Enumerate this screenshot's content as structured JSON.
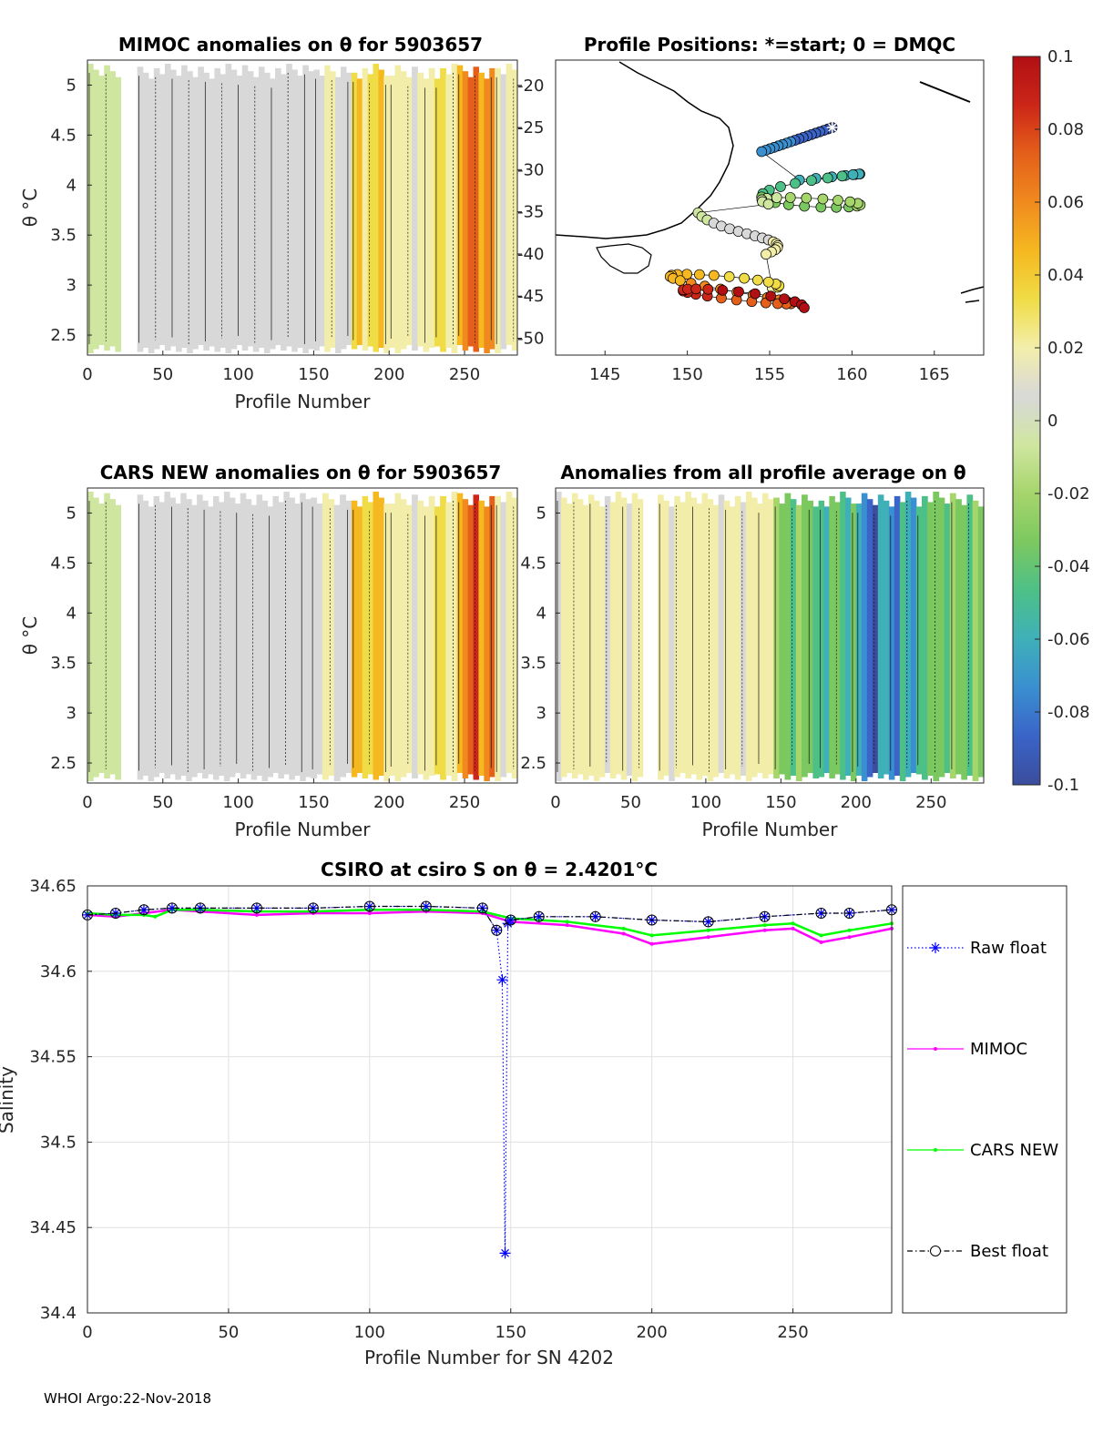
{
  "footer": "WHOI Argo:22-Nov-2018",
  "colorbar": {
    "ticks": [
      "0.1",
      "0.08",
      "0.06",
      "0.04",
      "0.02",
      "0",
      "-0.02",
      "-0.04",
      "-0.06",
      "-0.08",
      "-0.1"
    ],
    "range": [
      -0.1,
      0.1
    ],
    "colors": [
      "#3b4d9c",
      "#3a64c8",
      "#3a8fd0",
      "#3fb0b8",
      "#4dc088",
      "#7cc860",
      "#a6d56c",
      "#cfe6a0",
      "#d8d8d8",
      "#f2eeaa",
      "#f0dc46",
      "#f5b820",
      "#f08a1e",
      "#e45f1a",
      "#cc2618",
      "#b10f14"
    ]
  },
  "charts": {
    "mimoc_anom": {
      "type": "heatmap",
      "title": "MIMOC anomalies on θ  for 5903657",
      "xlabel": "Profile Number",
      "ylabel": "θ °C",
      "x_ticks": [
        "0",
        "50",
        "100",
        "150",
        "200",
        "250"
      ],
      "y_ticks": [
        "5",
        "4.5",
        "4",
        "3.5",
        "3",
        "2.5"
      ],
      "xlim": [
        0,
        285
      ],
      "ylim": [
        2.3,
        5.25
      ],
      "segments": [
        {
          "x": [
            0,
            22
          ],
          "anomaly": -0.01
        },
        {
          "x": [
            33,
            150
          ],
          "anomaly": 0.0
        },
        {
          "x": [
            150,
            175
          ],
          "anomaly": 0.015
        },
        {
          "x": [
            175,
            200
          ],
          "anomaly": 0.04
        },
        {
          "x": [
            200,
            230
          ],
          "anomaly": 0.02
        },
        {
          "x": [
            230,
            245
          ],
          "anomaly": 0.03
        },
        {
          "x": [
            245,
            270
          ],
          "anomaly": 0.065
        },
        {
          "x": [
            270,
            285
          ],
          "anomaly": 0.02
        }
      ]
    },
    "positions": {
      "type": "scatter",
      "title": "Profile Positions: *=start; 0 = DMQC",
      "x_ticks": [
        "145",
        "150",
        "155",
        "160",
        "165"
      ],
      "y_ticks": [
        "-20",
        "-25",
        "-30",
        "-35",
        "-40",
        "-45",
        "-50"
      ],
      "xlim": [
        142,
        168
      ],
      "ylim": [
        -52,
        -17
      ],
      "start": {
        "lon": 158.8,
        "lat": -25
      }
    },
    "cars_anom": {
      "type": "heatmap",
      "title": "CARS NEW anomalies on θ for 5903657",
      "xlabel": "Profile Number",
      "ylabel": "θ °C",
      "x_ticks": [
        "0",
        "50",
        "100",
        "150",
        "200",
        "250"
      ],
      "y_ticks": [
        "5",
        "4.5",
        "4",
        "3.5",
        "3",
        "2.5"
      ],
      "xlim": [
        0,
        285
      ],
      "ylim": [
        2.3,
        5.25
      ],
      "segments": [
        {
          "x": [
            0,
            22
          ],
          "anomaly": -0.01
        },
        {
          "x": [
            33,
            148
          ],
          "anomaly": 0.0
        },
        {
          "x": [
            148,
            175
          ],
          "anomaly": 0.015
        },
        {
          "x": [
            175,
            200
          ],
          "anomaly": 0.045
        },
        {
          "x": [
            200,
            230
          ],
          "anomaly": 0.02
        },
        {
          "x": [
            230,
            245
          ],
          "anomaly": 0.03
        },
        {
          "x": [
            245,
            270
          ],
          "anomaly": 0.07
        },
        {
          "x": [
            270,
            285
          ],
          "anomaly": 0.02
        }
      ]
    },
    "all_anom": {
      "type": "heatmap",
      "title": "Anomalies from all profile average on θ",
      "xlabel": "Profile Number",
      "x_ticks": [
        "0",
        "50",
        "100",
        "150",
        "200",
        "250"
      ],
      "y_ticks": [
        "5",
        "4.5",
        "4",
        "3.5",
        "3",
        "2.5"
      ],
      "xlim": [
        0,
        285
      ],
      "ylim": [
        2.3,
        5.25
      ],
      "segments": [
        {
          "x": [
            0,
            58
          ],
          "anomaly": 0.02
        },
        {
          "x": [
            68,
            145
          ],
          "anomaly": 0.02
        },
        {
          "x": [
            145,
            175
          ],
          "anomaly": -0.04
        },
        {
          "x": [
            175,
            200
          ],
          "anomaly": -0.05
        },
        {
          "x": [
            200,
            240
          ],
          "anomaly": -0.085
        },
        {
          "x": [
            240,
            285
          ],
          "anomaly": -0.04
        }
      ]
    }
  },
  "chart_data": {
    "type": "line",
    "title": "CSIRO at csiro S on θ = 2.4201°C",
    "xlabel": "Profile Number for SN 4202",
    "ylabel": "Salinity",
    "xlim": [
      0,
      285
    ],
    "ylim": [
      34.4,
      34.65
    ],
    "x_ticks": [
      "0",
      "50",
      "100",
      "150",
      "200",
      "250"
    ],
    "y_ticks": [
      "34.65",
      "34.6",
      "34.55",
      "34.5",
      "34.45",
      "34.4"
    ],
    "grid": true,
    "legend_position": "outside-right",
    "series": [
      {
        "name": "Raw float",
        "color": "#0000ff",
        "style": "dotted-star",
        "x": [
          0,
          10,
          20,
          30,
          40,
          60,
          80,
          100,
          120,
          140,
          145,
          147,
          148,
          149,
          150,
          160,
          180,
          200,
          220,
          240,
          260,
          270,
          285
        ],
        "y": [
          34.633,
          34.634,
          34.636,
          34.637,
          34.637,
          34.637,
          34.637,
          34.638,
          34.638,
          34.637,
          34.624,
          34.595,
          34.435,
          34.628,
          34.63,
          34.632,
          34.632,
          34.63,
          34.629,
          34.632,
          34.634,
          34.634,
          34.636
        ]
      },
      {
        "name": "MIMOC",
        "color": "#ff00ff",
        "style": "solid-dot",
        "x": [
          0,
          10,
          20,
          30,
          40,
          60,
          80,
          100,
          120,
          140,
          150,
          170,
          190,
          200,
          220,
          240,
          250,
          260,
          270,
          285
        ],
        "y": [
          34.633,
          34.632,
          34.634,
          34.636,
          34.635,
          34.633,
          34.634,
          34.634,
          34.635,
          34.634,
          34.629,
          34.627,
          34.622,
          34.616,
          34.62,
          34.624,
          34.625,
          34.617,
          34.62,
          34.625
        ]
      },
      {
        "name": "CARS NEW",
        "color": "#00ff00",
        "style": "solid-dot",
        "x": [
          0,
          10,
          20,
          24,
          30,
          40,
          60,
          80,
          100,
          120,
          140,
          150,
          170,
          190,
          200,
          220,
          240,
          250,
          260,
          270,
          285
        ],
        "y": [
          34.634,
          34.633,
          34.633,
          34.632,
          34.636,
          34.636,
          34.635,
          34.635,
          34.636,
          34.636,
          34.635,
          34.631,
          34.629,
          34.625,
          34.621,
          34.624,
          34.627,
          34.628,
          34.621,
          34.624,
          34.628
        ]
      },
      {
        "name": "Best float",
        "color": "#000000",
        "style": "dashdot-circle",
        "x": [
          0,
          10,
          20,
          30,
          40,
          60,
          80,
          100,
          120,
          140,
          145,
          150,
          160,
          180,
          200,
          220,
          240,
          260,
          270,
          285
        ],
        "y": [
          34.633,
          34.634,
          34.636,
          34.637,
          34.637,
          34.637,
          34.637,
          34.638,
          34.638,
          34.637,
          34.624,
          34.63,
          34.632,
          34.632,
          34.63,
          34.629,
          34.632,
          34.634,
          34.634,
          34.636
        ]
      }
    ]
  }
}
